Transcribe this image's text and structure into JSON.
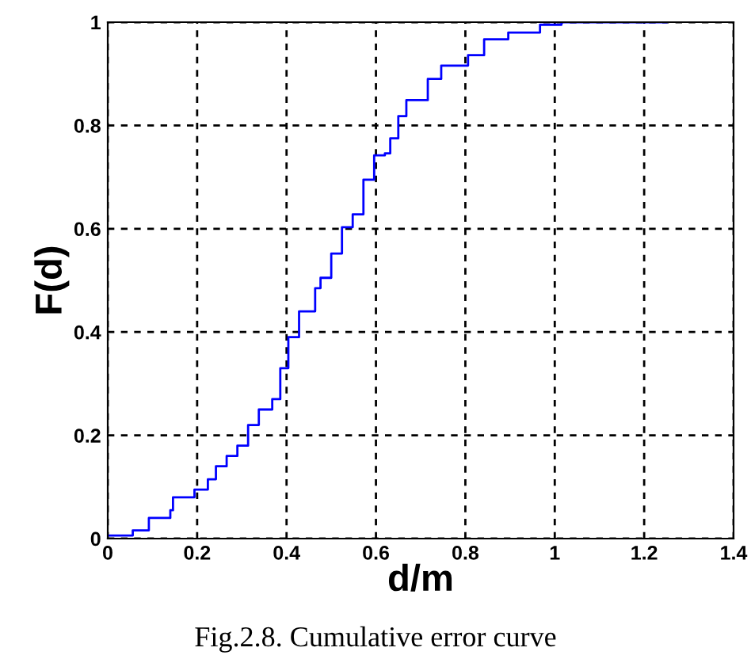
{
  "chart_data": {
    "type": "step",
    "xlabel": "d/m",
    "ylabel": "F(d)",
    "annotations": [
      "Fig.2.8. Cumulative error curve"
    ],
    "x": [
      0,
      0.056,
      0.092,
      0.14,
      0.146,
      0.194,
      0.224,
      0.242,
      0.266,
      0.29,
      0.314,
      0.338,
      0.368,
      0.386,
      0.404,
      0.428,
      0.464,
      0.476,
      0.5,
      0.524,
      0.548,
      0.572,
      0.596,
      0.62,
      0.632,
      0.65,
      0.668,
      0.716,
      0.746,
      0.806,
      0.842,
      0.896,
      0.967,
      1.015,
      1.25
    ],
    "series": [
      {
        "color": "#0000ff",
        "values": [
          0.006,
          0.016,
          0.04,
          0.055,
          0.08,
          0.095,
          0.115,
          0.14,
          0.16,
          0.18,
          0.22,
          0.25,
          0.27,
          0.33,
          0.39,
          0.44,
          0.485,
          0.505,
          0.552,
          0.603,
          0.628,
          0.695,
          0.742,
          0.746,
          0.775,
          0.818,
          0.849,
          0.89,
          0.916,
          0.936,
          0.967,
          0.98,
          0.995,
          1.0,
          1.0
        ]
      }
    ],
    "xlim": [
      0,
      1.4
    ],
    "ylim": [
      0,
      1
    ],
    "xticks": [
      0,
      0.2,
      0.4,
      0.6,
      0.8,
      1,
      1.2,
      1.4
    ],
    "yticks": [
      0,
      0.2,
      0.4,
      0.6,
      0.8,
      1
    ],
    "grid": true,
    "marker": "none",
    "line_style": "solid"
  }
}
